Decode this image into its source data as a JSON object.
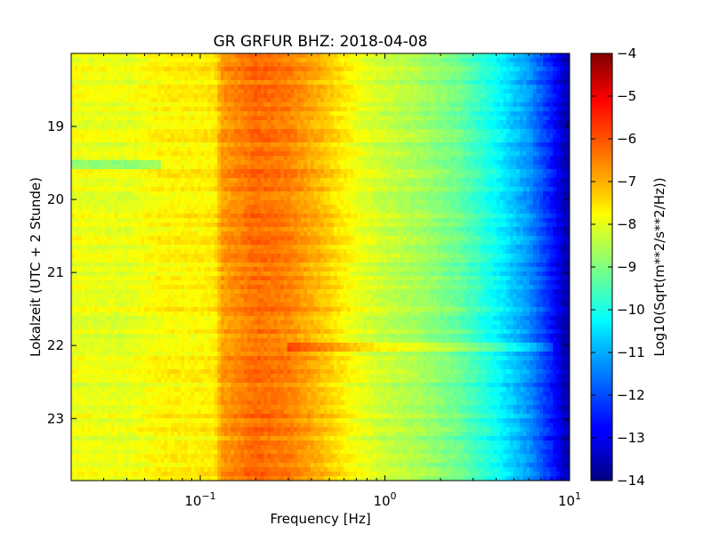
{
  "chart_data": {
    "type": "heatmap",
    "title": "GR GRFUR BHZ: 2018-04-08",
    "xlabel": "Frequency [Hz]",
    "ylabel": "Lokalzeit (UTC + 2 Stunde)",
    "colorbar_label": "Log10(Sqrt(m**2/s**2/Hz))",
    "x_scale": "log",
    "xlim": [
      0.02,
      10
    ],
    "x_ticks": [
      {
        "value": 0.1,
        "base": "10",
        "exp": "−1"
      },
      {
        "value": 1,
        "base": "10",
        "exp": "0"
      },
      {
        "value": 10,
        "base": "10",
        "exp": "1"
      }
    ],
    "ylim_top_to_bottom": [
      18.0,
      23.85
    ],
    "y_ticks": [
      19,
      20,
      21,
      22,
      23
    ],
    "y_tick_labels": [
      "19",
      "20",
      "21",
      "22",
      "23"
    ],
    "clim": [
      -14,
      -4
    ],
    "colorbar_ticks": [
      -4,
      -5,
      -6,
      -7,
      -8,
      -9,
      -10,
      -11,
      -12,
      -13,
      -14
    ],
    "colorbar_tick_labels": [
      "−4",
      "−5",
      "−6",
      "−7",
      "−8",
      "−9",
      "−10",
      "−11",
      "−12",
      "−13",
      "−14"
    ],
    "colormap": "jet",
    "spectrum_profile": [
      {
        "freq": 0.02,
        "value": -7.9
      },
      {
        "freq": 0.04,
        "value": -8.0
      },
      {
        "freq": 0.06,
        "value": -7.7
      },
      {
        "freq": 0.12,
        "value": -7.6
      },
      {
        "freq": 0.13,
        "value": -6.8
      },
      {
        "freq": 0.2,
        "value": -6.3
      },
      {
        "freq": 0.3,
        "value": -6.5
      },
      {
        "freq": 0.45,
        "value": -7.1
      },
      {
        "freq": 0.7,
        "value": -7.9
      },
      {
        "freq": 1.0,
        "value": -8.3
      },
      {
        "freq": 1.5,
        "value": -8.6
      },
      {
        "freq": 2.5,
        "value": -9.2
      },
      {
        "freq": 4.0,
        "value": -10.2
      },
      {
        "freq": 6.0,
        "value": -11.3
      },
      {
        "freq": 8.0,
        "value": -12.5
      },
      {
        "freq": 10.0,
        "value": -13.7
      }
    ],
    "notable_features": [
      {
        "hour": 22.0,
        "freq_range": [
          0.3,
          8.0
        ],
        "value_shift": 0.7,
        "description_text": ""
      },
      {
        "hour": 19.5,
        "freq_range": [
          0.02,
          0.06
        ],
        "value_shift": -0.8,
        "description_text": ""
      }
    ]
  }
}
